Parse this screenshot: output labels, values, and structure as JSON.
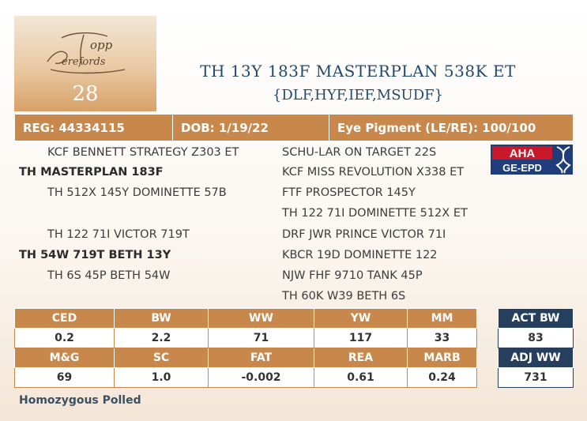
{
  "logo": {
    "name": "Topp Herefords",
    "icon": "topp-herefords-script-logo"
  },
  "lot_number": "28",
  "title": "TH 13Y 183F MASTERPLAN 538K ET",
  "subtitle": "{DLF,HYF,IEF,MSUDF}",
  "info": {
    "reg": "REG: 44334115",
    "dob": "DOB: 1/19/22",
    "eye": "Eye Pigment (LE/RE): 100/100"
  },
  "pedigree": {
    "sire_sire": "KCF BENNETT STRATEGY Z303 ET",
    "sire": "TH MASTERPLAN 183F",
    "sire_dam": "TH 512X 145Y DOMINETTE 57B",
    "dam_sire": "TH 122 71I VICTOR 719T",
    "dam": "TH 54W 719T BETH 13Y",
    "dam_dam": "TH 6S 45P BETH 54W",
    "right": [
      "SCHU-LAR ON TARGET 22S",
      "KCF MISS REVOLUTION X338 ET",
      "FTF PROSPECTOR 145Y",
      "TH 122 71I DOMINETTE 512X ET",
      "DRF JWR PRINCE VICTOR 71I",
      "KBCR 19D DOMINETTE 122",
      "NJW FHF 9710 TANK 45P",
      "TH 60K W39 BETH 6S"
    ]
  },
  "aha": {
    "top": "AHA",
    "bottom": "GE-EPD",
    "icon": "dna-helix-icon"
  },
  "epd": {
    "row1_headers": [
      "CED",
      "BW",
      "WW",
      "YW",
      "MM"
    ],
    "row1_values": [
      "0.2",
      "2.2",
      "71",
      "117",
      "33"
    ],
    "row2_headers": [
      "M&G",
      "SC",
      "FAT",
      "REA",
      "MARB"
    ],
    "row2_values": [
      "69",
      "1.0",
      "-0.002",
      "0.61",
      "0.24"
    ]
  },
  "actual": {
    "bw_label": "ACT BW",
    "bw_value": "83",
    "ww_label": "ADJ WW",
    "ww_value": "731"
  },
  "footer": "Homozygous Polled",
  "colors": {
    "accent": "#c8874b",
    "navy": "#263f5e",
    "title": "#234a6e"
  }
}
